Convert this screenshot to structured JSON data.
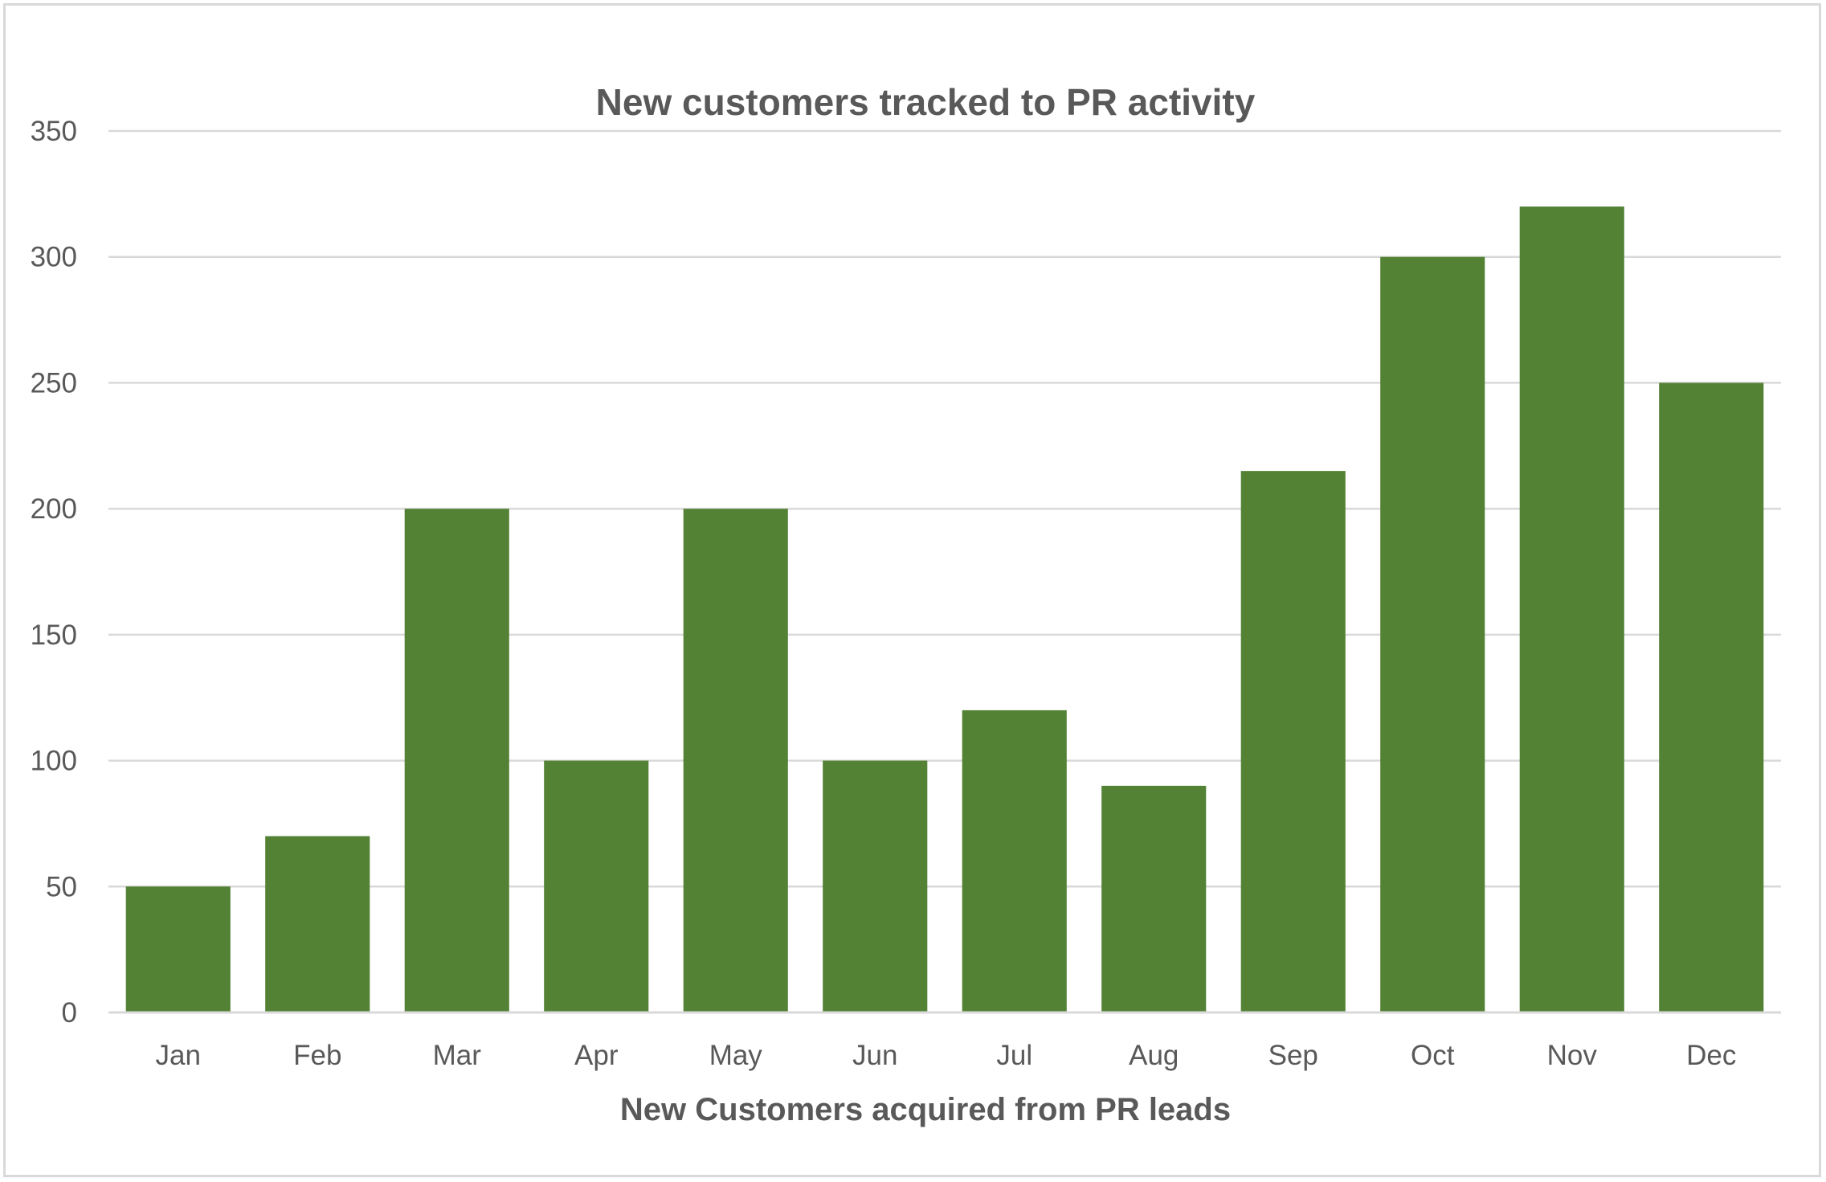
{
  "chart_data": {
    "type": "bar",
    "title": "New customers tracked to PR activity",
    "xlabel": "New Customers acquired from PR leads",
    "ylabel": "",
    "categories": [
      "Jan",
      "Feb",
      "Mar",
      "Apr",
      "May",
      "Jun",
      "Jul",
      "Aug",
      "Sep",
      "Oct",
      "Nov",
      "Dec"
    ],
    "values": [
      50,
      70,
      200,
      100,
      200,
      100,
      120,
      90,
      215,
      300,
      320,
      250
    ],
    "ylim": [
      0,
      350
    ],
    "yticks": [
      0,
      50,
      100,
      150,
      200,
      250,
      300,
      350
    ],
    "grid": true,
    "legend": "none",
    "bar_color": "#548235",
    "gridline_color": "#d9d9d9",
    "text_color": "#595959"
  }
}
